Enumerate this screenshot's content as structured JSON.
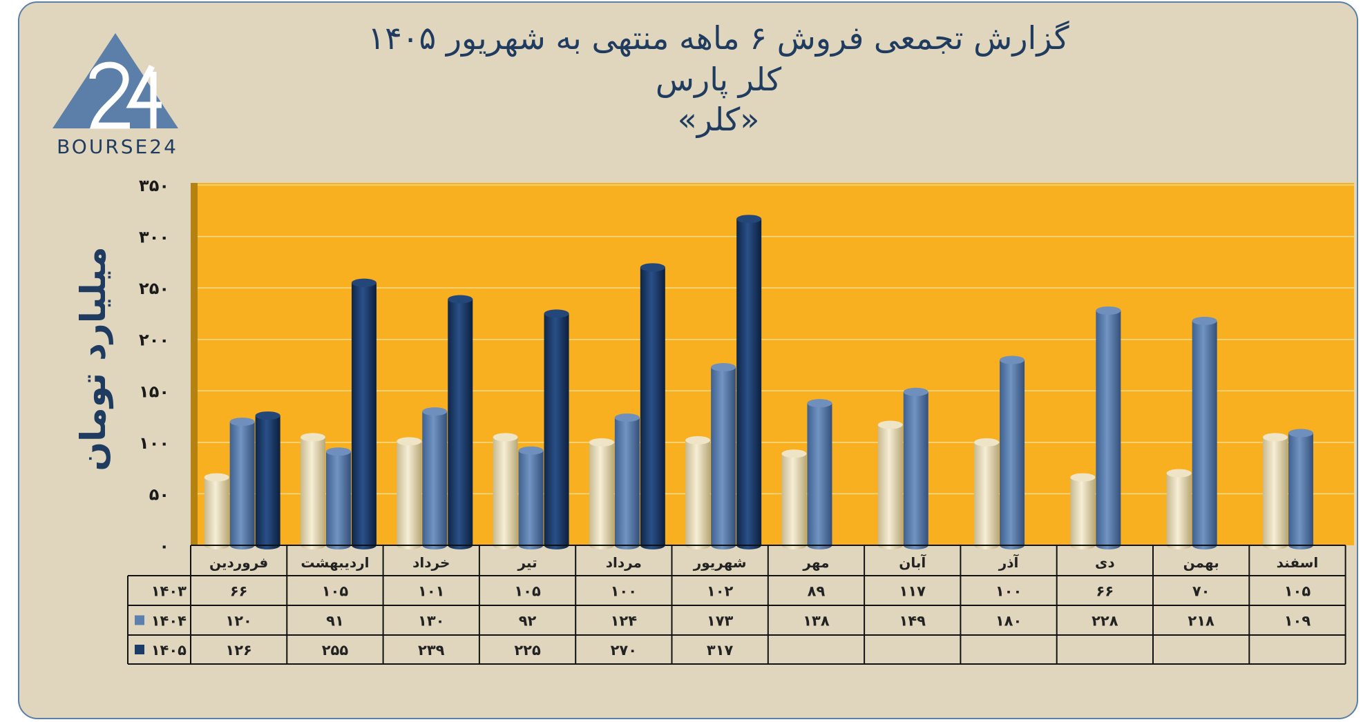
{
  "title": {
    "line1": "گزارش تجمعی فروش ۶ ماهه منتهی به شهریور ۱۴۰۵",
    "line2": "کلر پارس",
    "line3": "«کلر»"
  },
  "logo": {
    "text": "BOURSE24",
    "icon": "bourse24-triangle-logo"
  },
  "colors": {
    "background": "#e0d6bd",
    "plot_area": "#f8b020",
    "series_1403": "#eee3c2",
    "series_1404": "#5b7fae",
    "series_1405": "#1b3b68",
    "text_dark": "#1f3b5f"
  },
  "chart_data": {
    "type": "bar",
    "title": "گزارش تجمعی فروش ۶ ماهه منتهی به شهریور ۱۴۰۵",
    "subtitle": "کلر پارس «کلر»",
    "ylabel": "میلیارد تومان",
    "ylim": [
      0,
      350
    ],
    "yticks": [
      0,
      50,
      100,
      150,
      200,
      250,
      300,
      350
    ],
    "ytick_labels": [
      "۰",
      "۵۰",
      "۱۰۰",
      "۱۵۰",
      "۲۰۰",
      "۲۵۰",
      "۳۰۰",
      "۳۵۰"
    ],
    "grid": true,
    "categories": [
      "فروردین",
      "اردیبهشت",
      "خرداد",
      "تیر",
      "مرداد",
      "شهریور",
      "مهر",
      "آبان",
      "آذر",
      "دی",
      "بهمن",
      "اسفند"
    ],
    "series": [
      {
        "name": "۱۴۰۳",
        "values": [
          66,
          105,
          101,
          105,
          100,
          102,
          89,
          117,
          100,
          66,
          70,
          105
        ],
        "labels": [
          "۶۶",
          "۱۰۵",
          "۱۰۱",
          "۱۰۵",
          "۱۰۰",
          "۱۰۲",
          "۸۹",
          "۱۱۷",
          "۱۰۰",
          "۶۶",
          "۷۰",
          "۱۰۵"
        ]
      },
      {
        "name": "۱۴۰۴",
        "values": [
          120,
          91,
          130,
          92,
          124,
          173,
          138,
          149,
          180,
          228,
          218,
          109
        ],
        "labels": [
          "۱۲۰",
          "۹۱",
          "۱۳۰",
          "۹۲",
          "۱۲۴",
          "۱۷۳",
          "۱۳۸",
          "۱۴۹",
          "۱۸۰",
          "۲۲۸",
          "۲۱۸",
          "۱۰۹"
        ]
      },
      {
        "name": "۱۴۰۵",
        "values": [
          126,
          255,
          239,
          225,
          270,
          317,
          null,
          null,
          null,
          null,
          null,
          null
        ],
        "labels": [
          "۱۲۶",
          "۲۵۵",
          "۲۳۹",
          "۲۲۵",
          "۲۷۰",
          "۳۱۷",
          "",
          "",
          "",
          "",
          "",
          ""
        ]
      }
    ],
    "legend": "data table below chart"
  }
}
